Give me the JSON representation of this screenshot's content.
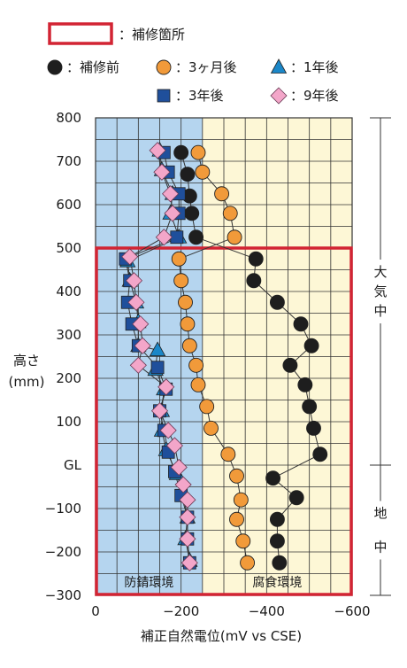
{
  "legend": {
    "repair_area_label": "：補修箇所",
    "items": [
      {
        "label": "：補修前",
        "series": "before"
      },
      {
        "label": "：3ヶ月後",
        "series": "m3"
      },
      {
        "label": "：1年後",
        "series": "y1"
      },
      {
        "label": "：3年後",
        "series": "y3"
      },
      {
        "label": "：9年後",
        "series": "y9"
      }
    ]
  },
  "colors": {
    "anticorrosion_bg": "#b5d5ef",
    "corrosion_bg": "#fdf7d6",
    "repair_frame": "#d22433",
    "grid": "#333333",
    "before": "#1e1e1e",
    "m3": "#f19a3a",
    "y1": "#1b87c8",
    "y3": "#1f4f9b",
    "y9": "#f3a6c9"
  },
  "chart_data": {
    "type": "scatter",
    "xlabel": "補正自然電位(mV vs CSE)",
    "ylabel_lines": [
      "高さ",
      "(mm)"
    ],
    "xlim": [
      0,
      -600
    ],
    "ylim": [
      -300,
      800
    ],
    "x_ticks": [
      0,
      -200,
      -400,
      -600
    ],
    "x_tick_labels": [
      "0",
      "−200",
      "−400",
      "−600"
    ],
    "y_ticks": [
      800,
      700,
      600,
      500,
      400,
      300,
      200,
      100,
      0,
      -100,
      -200,
      -300
    ],
    "y_tick_labels": [
      "800",
      "700",
      "600",
      "500",
      "400",
      "300",
      "200",
      "100",
      "GL",
      "−100",
      "−200",
      "−300"
    ],
    "grid": true,
    "regions": {
      "anticorrosion": {
        "label": "防錆環境",
        "x_range": [
          0,
          -250
        ]
      },
      "corrosion": {
        "label": "腐食環境",
        "x_range": [
          -250,
          -600
        ]
      }
    },
    "repair_area": {
      "x_range": [
        0,
        -600
      ],
      "y_range": [
        -300,
        500
      ]
    },
    "zones": [
      {
        "label_chars": [
          "大",
          "気",
          "中"
        ],
        "y_range": [
          0,
          800
        ]
      },
      {
        "label_chars": [
          "地",
          "中"
        ],
        "y_range": [
          -300,
          0
        ]
      }
    ],
    "series": [
      {
        "key": "before",
        "marker": "circle",
        "points": [
          [
            -200,
            720
          ],
          [
            -215,
            670
          ],
          [
            -220,
            620
          ],
          [
            -225,
            580
          ],
          [
            -235,
            525
          ],
          [
            -375,
            475
          ],
          [
            -370,
            425
          ],
          [
            -425,
            375
          ],
          [
            -480,
            325
          ],
          [
            -505,
            275
          ],
          [
            -455,
            230
          ],
          [
            -490,
            185
          ],
          [
            -500,
            135
          ],
          [
            -510,
            85
          ],
          [
            -525,
            25
          ],
          [
            -415,
            -30
          ],
          [
            -470,
            -75
          ],
          [
            -425,
            -125
          ],
          [
            -425,
            -175
          ],
          [
            -430,
            -225
          ]
        ]
      },
      {
        "key": "m3",
        "marker": "circle",
        "points": [
          [
            -240,
            720
          ],
          [
            -250,
            675
          ],
          [
            -295,
            625
          ],
          [
            -315,
            580
          ],
          [
            -325,
            525
          ],
          [
            -195,
            475
          ],
          [
            -200,
            425
          ],
          [
            -210,
            375
          ],
          [
            -215,
            325
          ],
          [
            -220,
            275
          ],
          [
            -235,
            230
          ],
          [
            -240,
            185
          ],
          [
            -260,
            135
          ],
          [
            -270,
            85
          ],
          [
            -310,
            25
          ],
          [
            -330,
            -25
          ],
          [
            -340,
            -80
          ],
          [
            -330,
            -125
          ],
          [
            -345,
            -175
          ],
          [
            -355,
            -225
          ]
        ]
      },
      {
        "key": "y1",
        "marker": "triangle",
        "points": [
          [
            -150,
            725
          ],
          [
            -155,
            680
          ],
          [
            -180,
            625
          ],
          [
            -175,
            580
          ],
          [
            -195,
            525
          ],
          [
            -75,
            470
          ],
          [
            -80,
            425
          ],
          [
            -95,
            375
          ],
          [
            -100,
            330
          ],
          [
            -100,
            275
          ],
          [
            -145,
            265
          ],
          [
            -140,
            220
          ],
          [
            -160,
            175
          ],
          [
            -155,
            125
          ],
          [
            -155,
            80
          ],
          [
            -165,
            35
          ],
          [
            -190,
            -20
          ],
          [
            -205,
            -70
          ],
          [
            -215,
            -120
          ],
          [
            -210,
            -170
          ],
          [
            -220,
            -220
          ]
        ]
      },
      {
        "key": "y3",
        "marker": "square",
        "points": [
          [
            -160,
            720
          ],
          [
            -170,
            675
          ],
          [
            -195,
            625
          ],
          [
            -195,
            580
          ],
          [
            -190,
            525
          ],
          [
            -70,
            475
          ],
          [
            -80,
            425
          ],
          [
            -75,
            375
          ],
          [
            -85,
            325
          ],
          [
            -100,
            275
          ],
          [
            -145,
            225
          ],
          [
            -165,
            175
          ],
          [
            -150,
            125
          ],
          [
            -160,
            80
          ],
          [
            -170,
            30
          ],
          [
            -185,
            -15
          ],
          [
            -200,
            -70
          ],
          [
            -215,
            -120
          ],
          [
            -215,
            -170
          ],
          [
            -220,
            -225
          ]
        ]
      },
      {
        "key": "y9",
        "marker": "diamond",
        "points": [
          [
            -145,
            725
          ],
          [
            -155,
            675
          ],
          [
            -175,
            625
          ],
          [
            -180,
            580
          ],
          [
            -160,
            525
          ],
          [
            -80,
            480
          ],
          [
            -90,
            425
          ],
          [
            -95,
            375
          ],
          [
            -105,
            325
          ],
          [
            -110,
            275
          ],
          [
            -100,
            230
          ],
          [
            -165,
            180
          ],
          [
            -150,
            125
          ],
          [
            -170,
            80
          ],
          [
            -185,
            45
          ],
          [
            -195,
            -5
          ],
          [
            -205,
            -45
          ],
          [
            -215,
            -80
          ],
          [
            -215,
            -120
          ],
          [
            -215,
            -170
          ],
          [
            -220,
            -225
          ]
        ]
      }
    ]
  }
}
